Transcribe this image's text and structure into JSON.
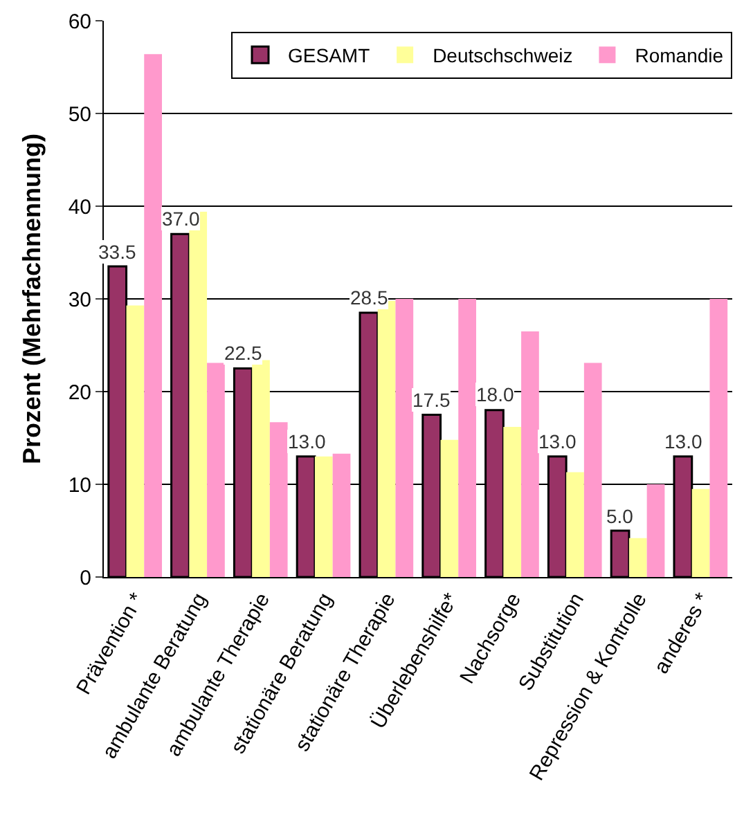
{
  "chart_data": {
    "type": "bar",
    "ylabel": "Prozent (Mehrfachnennung)",
    "categories": [
      "Prävention *",
      "ambulante Beratung",
      "ambulante Therapie",
      "stationäre Beratung",
      "stationäre Therapie",
      "Überlebenshilfe*",
      "Nachsorge",
      "Substitution",
      "Repression & Kontrolle",
      "anderes *"
    ],
    "series": [
      {
        "name": "GESAMT",
        "color": "#993366",
        "values": [
          33.5,
          37.0,
          22.5,
          13.0,
          28.5,
          17.5,
          18.0,
          13.0,
          5.0,
          13.0
        ],
        "value_labels": [
          "33.5",
          "37.0",
          "22.5",
          "13.0",
          "28.5",
          "17.5",
          "18.0",
          "13.0",
          "5.0",
          "13.0"
        ]
      },
      {
        "name": "Deutschschweiz",
        "color": "#ffff99",
        "values": [
          29.3,
          39.4,
          23.4,
          13.0,
          29.8,
          14.8,
          16.2,
          11.3,
          4.2,
          9.5
        ]
      },
      {
        "name": "Romandie",
        "color": "#ff99cc",
        "values": [
          56.4,
          23.1,
          16.7,
          13.3,
          30,
          30,
          26.5,
          23.1,
          10,
          30
        ]
      }
    ],
    "ylim": [
      0,
      60
    ],
    "yticks": [
      0,
      10,
      20,
      30,
      40,
      50,
      60
    ],
    "grid": "y",
    "legend": "top"
  }
}
